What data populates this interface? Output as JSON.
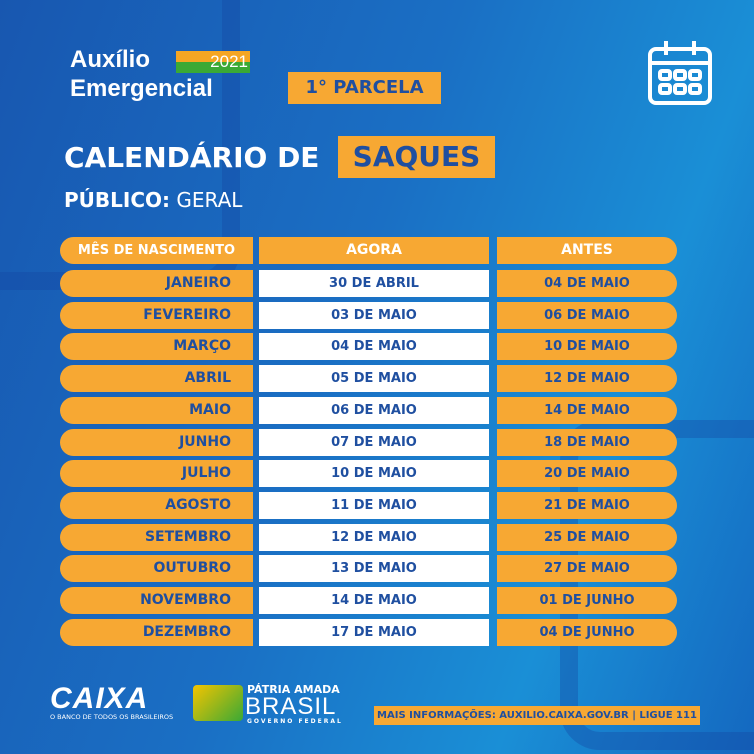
{
  "header": {
    "brand_line1": "Auxílio",
    "brand_year": "2021",
    "brand_line2": "Emergencial",
    "installment": "1° PARCELA",
    "title": "CALENDÁRIO DE",
    "title_highlight": "SAQUES",
    "audience_label": "PÚBLICO:",
    "audience_value": "GERAL",
    "icon": "calendar-icon"
  },
  "table": {
    "headers": [
      "MÊS DE NASCIMENTO",
      "AGORA",
      "ANTES"
    ],
    "rows": [
      [
        "JANEIRO",
        "30 DE ABRIL",
        "04 DE MAIO"
      ],
      [
        "FEVEREIRO",
        "03 DE MAIO",
        "06 DE MAIO"
      ],
      [
        "MARÇO",
        "04 DE MAIO",
        "10 DE MAIO"
      ],
      [
        "ABRIL",
        "05 DE MAIO",
        "12 DE MAIO"
      ],
      [
        "MAIO",
        "06 DE MAIO",
        "14 DE MAIO"
      ],
      [
        "JUNHO",
        "07 DE MAIO",
        "18 DE MAIO"
      ],
      [
        "JULHO",
        "10 DE MAIO",
        "20 DE MAIO"
      ],
      [
        "AGOSTO",
        "11 DE MAIO",
        "21 DE MAIO"
      ],
      [
        "SETEMBRO",
        "12 DE MAIO",
        "25 DE MAIO"
      ],
      [
        "OUTUBRO",
        "13 DE MAIO",
        "27 DE MAIO"
      ],
      [
        "NOVEMBRO",
        "14 DE MAIO",
        "01 DE JUNHO"
      ],
      [
        "DEZEMBRO",
        "17 DE MAIO",
        "04 DE JUNHO"
      ]
    ]
  },
  "footer": {
    "caixa": "CAIXA",
    "caixa_tagline": "O BANCO DE TODOS OS BRASILEIROS",
    "patria": "PÁTRIA AMADA",
    "brasil": "BRASIL",
    "governo": "GOVERNO FEDERAL",
    "info": "MAIS INFORMAÇÕES: AUXILIO.CAIXA.GOV.BR | LIGUE 111"
  },
  "colors": {
    "orange": "#f7a833",
    "blue": "#1857b0",
    "text_blue": "#1f4fa0"
  }
}
